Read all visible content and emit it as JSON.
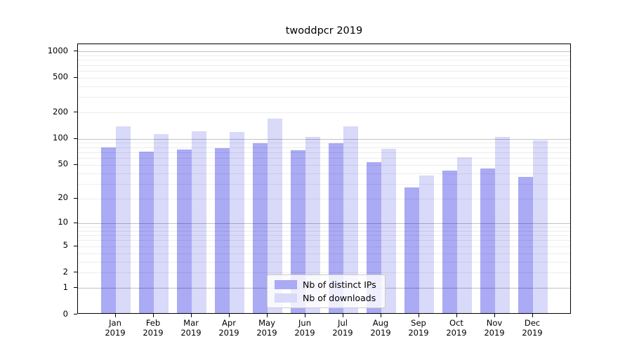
{
  "title": "twoddpcr 2019",
  "chart_data": {
    "type": "bar",
    "title": "twoddpcr 2019",
    "categories": [
      "Jan 2019",
      "Feb 2019",
      "Mar 2019",
      "Apr 2019",
      "May 2019",
      "Jun 2019",
      "Jul 2019",
      "Aug 2019",
      "Sep 2019",
      "Oct 2019",
      "Nov 2019",
      "Dec 2019"
    ],
    "series": [
      {
        "name": "Nb of distinct IPs",
        "color": "#aaaaf5",
        "values": [
          77,
          69,
          73,
          75,
          86,
          71,
          86,
          52,
          26,
          41,
          44,
          35
        ]
      },
      {
        "name": "Nb of downloads",
        "color": "#d9d9f9",
        "values": [
          135,
          110,
          117,
          115,
          165,
          102,
          135,
          74,
          36,
          59,
          101,
          92
        ]
      }
    ],
    "xlabel": "",
    "ylabel": "",
    "yscale": "log10(1+y)",
    "ylim": [
      0,
      1210
    ],
    "yticks": [
      0,
      1,
      2,
      5,
      10,
      20,
      50,
      100,
      200,
      500,
      1000
    ],
    "ytick_major": [
      1,
      10,
      100,
      1000
    ],
    "grid": "horizontal",
    "legend_position": "lower center"
  },
  "legend": {
    "items": [
      {
        "label": "Nb of distinct IPs",
        "color": "#aaaaf5"
      },
      {
        "label": "Nb of downloads",
        "color": "#d9d9f9"
      }
    ]
  }
}
